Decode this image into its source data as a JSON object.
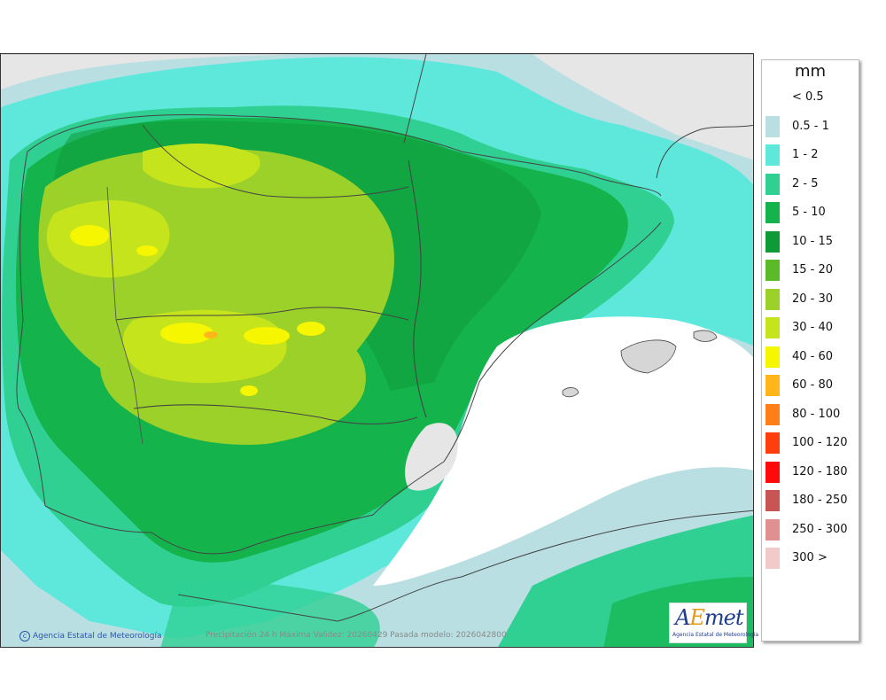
{
  "map": {
    "legend": {
      "title": "mm",
      "items": [
        {
          "label": "< 0.5",
          "color": "#ffffff"
        },
        {
          "label": "0.5 - 1",
          "color": "#b9dfe3"
        },
        {
          "label": "1 - 2",
          "color": "#5ee8dc"
        },
        {
          "label": "2 - 5",
          "color": "#30d093"
        },
        {
          "label": "5 - 10",
          "color": "#14b34c"
        },
        {
          "label": "10 - 15",
          "color": "#0f9a38"
        },
        {
          "label": "15 - 20",
          "color": "#5aba28"
        },
        {
          "label": "20 - 30",
          "color": "#9cd12a"
        },
        {
          "label": "30 - 40",
          "color": "#c6e41b"
        },
        {
          "label": "40 - 60",
          "color": "#f6f600"
        },
        {
          "label": "60 - 80",
          "color": "#ffb61a"
        },
        {
          "label": "80 - 100",
          "color": "#ff7e17"
        },
        {
          "label": "100 - 120",
          "color": "#ff3e0d"
        },
        {
          "label": "120 - 180",
          "color": "#ff0a0a"
        },
        {
          "label": "180 - 250",
          "color": "#c95454"
        },
        {
          "label": "250 - 300",
          "color": "#e09090"
        },
        {
          "label": "300 >",
          "color": "#f2caca"
        }
      ]
    },
    "credits": {
      "agency": "Agencia Estatal de Meteorología",
      "validity": "Precipitación 24 h Máxima  Validez: 20260429 Pasada modelo: 2026042800"
    },
    "logo": {
      "word_a": "A",
      "word_e": "E",
      "word_rest": "met",
      "subtitle": "Agencia Estatal de Meteorología"
    }
  }
}
